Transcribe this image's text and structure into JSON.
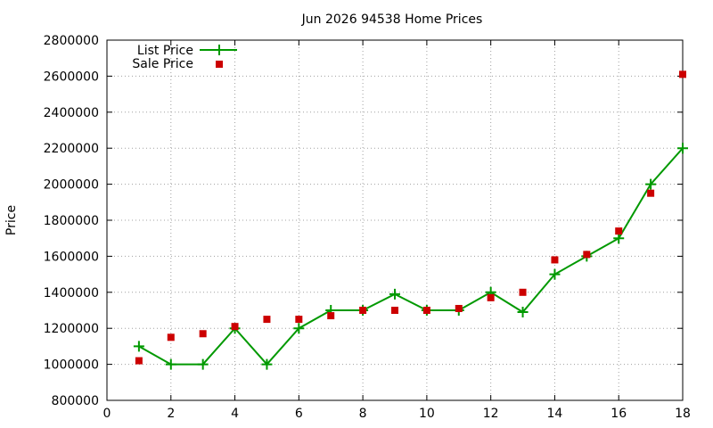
{
  "chart_data": {
    "type": "line",
    "title": "Jun 2026 94538 Home Prices",
    "xlabel": "",
    "ylabel": "Price",
    "xlim": [
      0,
      18
    ],
    "ylim": [
      800000,
      2800000
    ],
    "xticks": [
      0,
      2,
      4,
      6,
      8,
      10,
      12,
      14,
      16,
      18
    ],
    "yticks": [
      800000,
      1000000,
      1200000,
      1400000,
      1600000,
      1800000,
      2000000,
      2200000,
      2400000,
      2600000,
      2800000
    ],
    "grid": true,
    "legend_position": "top-left",
    "series": [
      {
        "name": "List Price",
        "style": "line-points",
        "color": "#009900",
        "x": [
          1,
          2,
          3,
          4,
          5,
          6,
          7,
          8,
          9,
          10,
          11,
          12,
          13,
          14,
          15,
          16,
          17,
          18
        ],
        "values": [
          1100000,
          1000000,
          1000000,
          1200000,
          1000000,
          1200000,
          1300000,
          1300000,
          1390000,
          1300000,
          1300000,
          1400000,
          1290000,
          1500000,
          1600000,
          1700000,
          2000000,
          2200000
        ]
      },
      {
        "name": "Sale Price",
        "style": "points",
        "color": "#cc0000",
        "x": [
          1,
          2,
          3,
          4,
          5,
          6,
          7,
          8,
          9,
          10,
          11,
          12,
          13,
          14,
          15,
          16,
          17,
          18
        ],
        "values": [
          1020000,
          1150000,
          1170000,
          1210000,
          1250000,
          1250000,
          1270000,
          1300000,
          1300000,
          1300000,
          1310000,
          1370000,
          1400000,
          1580000,
          1610000,
          1740000,
          1950000,
          2610000
        ]
      }
    ]
  }
}
